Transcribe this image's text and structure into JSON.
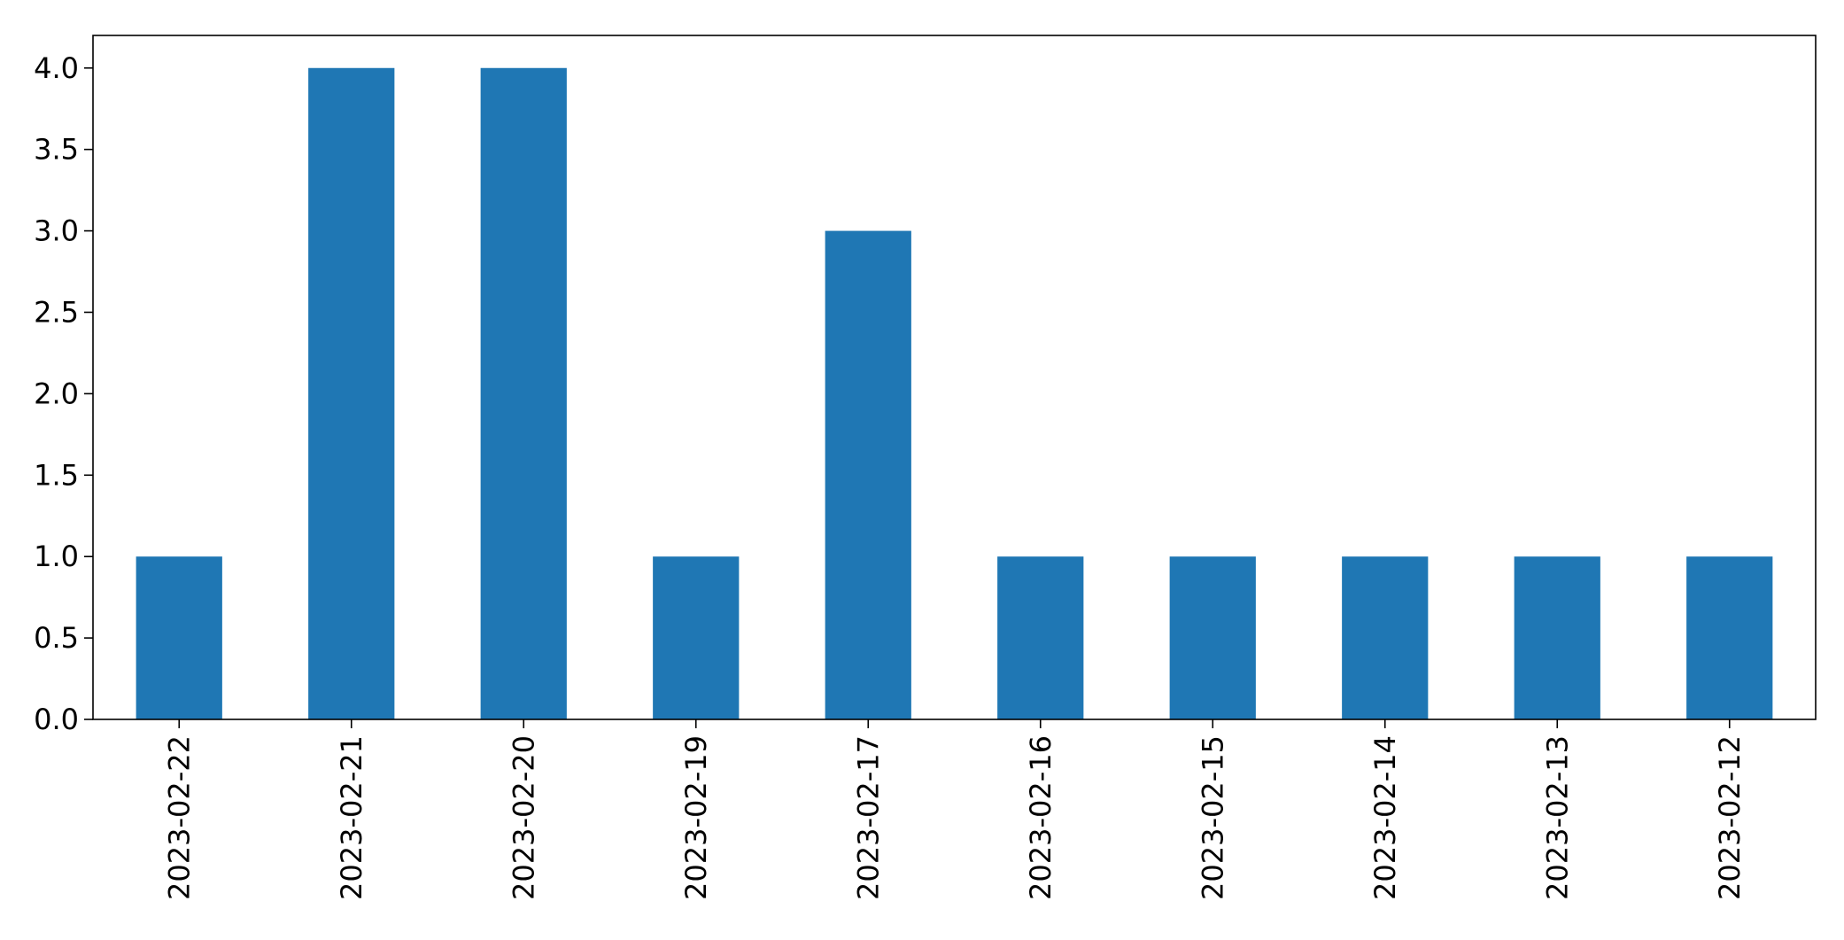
{
  "chart_data": {
    "type": "bar",
    "title": "",
    "xlabel": "",
    "ylabel": "",
    "categories": [
      "2023-02-22",
      "2023-02-21",
      "2023-02-20",
      "2023-02-19",
      "2023-02-17",
      "2023-02-16",
      "2023-02-15",
      "2023-02-14",
      "2023-02-13",
      "2023-02-12"
    ],
    "values": [
      1,
      4,
      4,
      1,
      3,
      1,
      1,
      1,
      1,
      1
    ],
    "ylim": [
      0,
      4.2
    ],
    "yticks": [
      "0.0",
      "0.5",
      "1.0",
      "1.5",
      "2.0",
      "2.5",
      "3.0",
      "3.5",
      "4.0"
    ],
    "grid": false,
    "legend": "none",
    "bar_color": "#1f77b4"
  }
}
